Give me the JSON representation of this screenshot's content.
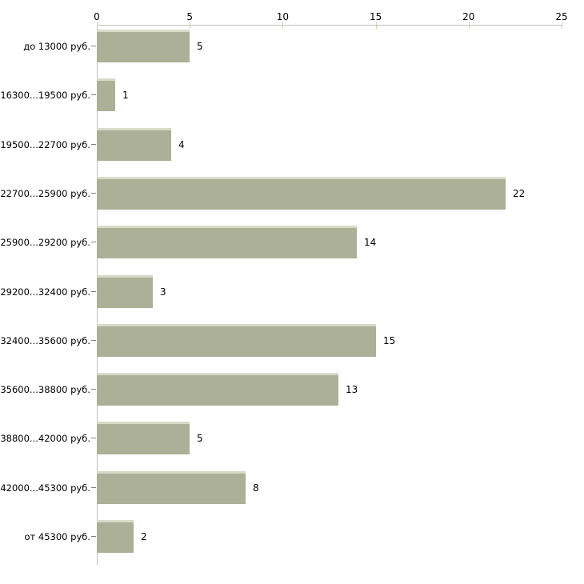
{
  "chart_data": {
    "type": "bar",
    "orientation": "horizontal",
    "title": "",
    "xlabel": "",
    "ylabel": "",
    "categories": [
      "до 13000 руб.",
      "16300...19500 руб.",
      "19500...22700 руб.",
      "22700...25900 руб.",
      "25900...29200 руб.",
      "29200...32400 руб.",
      "32400...35600 руб.",
      "35600...38800 руб.",
      "38800...42000 руб.",
      "42000...45300 руб.",
      "от 45300 руб."
    ],
    "values": [
      5,
      1,
      4,
      22,
      14,
      3,
      15,
      13,
      5,
      8,
      2
    ],
    "x_axis": {
      "position": "top",
      "min": 0,
      "max": 25,
      "ticks": [
        0,
        5,
        10,
        15,
        20,
        25
      ]
    },
    "grid": false,
    "legend": false,
    "colors": {
      "bar_fill": "#abb097",
      "bar_top_highlight": "#d8dbc7",
      "axis_line": "#c0c0c0",
      "x_tick_mark": "#ccd0a2",
      "category_tick_mark": "#808080",
      "text": "#000000",
      "background": "#ffffff"
    }
  }
}
